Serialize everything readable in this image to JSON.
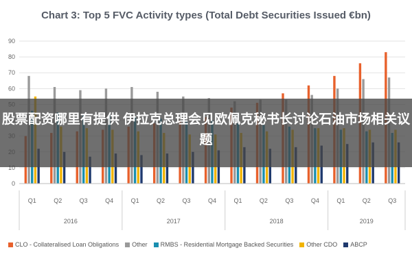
{
  "chart_data": {
    "type": "bar",
    "title": "Chart 3: Top 5 FVC Activity types (Total Debt Securities Issued €bn)",
    "quarters": [
      "Q1",
      "Q2",
      "Q3",
      "Q4",
      "Q1",
      "Q2",
      "Q3",
      "Q4",
      "Q1",
      "Q2",
      "Q3",
      "Q4",
      "Q1",
      "Q2",
      "Q3"
    ],
    "years": [
      "2016",
      "2017",
      "2018",
      "2019"
    ],
    "year_spans": [
      4,
      4,
      4,
      3
    ],
    "ylim": [
      0,
      90
    ],
    "yticks": [
      "0",
      "10",
      "20",
      "30",
      "40",
      "50",
      "60",
      "70",
      "80",
      "90"
    ],
    "grid": true,
    "legend_position": "bottom",
    "series": [
      {
        "name": "CLO - Collateralised Loan Obligations",
        "color": "#e8612c",
        "values": [
          30,
          32,
          33,
          34,
          36,
          38,
          40,
          42,
          48,
          51,
          57,
          62,
          68,
          76,
          83
        ]
      },
      {
        "name": "Other",
        "color": "#9a9a9a",
        "values": [
          68,
          61,
          59,
          60,
          61,
          58,
          55,
          54,
          52,
          53,
          53,
          56,
          60,
          66,
          67
        ]
      },
      {
        "name": "RMBS - Residential Mortgage Backed Securities",
        "color": "#1a8fb0",
        "values": [
          46,
          45,
          44,
          43,
          42,
          41,
          40,
          40,
          38,
          37,
          36,
          35,
          34,
          33,
          32
        ]
      },
      {
        "name": "Other CDO",
        "color": "#f2b400",
        "values": [
          55,
          36,
          35,
          34,
          33,
          32,
          31,
          31,
          32,
          33,
          34,
          35,
          35,
          34,
          34
        ]
      },
      {
        "name": "ABCP",
        "color": "#1f3a6e",
        "values": [
          22,
          20,
          17,
          19,
          18,
          19,
          20,
          21,
          23,
          22,
          23,
          24,
          25,
          26,
          26
        ]
      }
    ]
  },
  "overlay_text": "股票配资哪里有提供 伊拉克总理会见欧佩克秘书长讨论石油市场相关议题"
}
